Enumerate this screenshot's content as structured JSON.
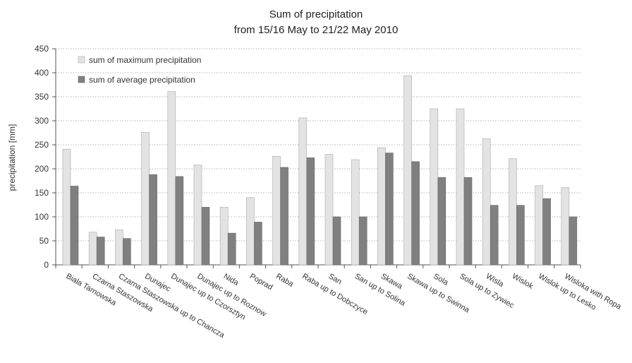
{
  "chart_data": {
    "type": "bar",
    "title": "Sum of precipitation",
    "subtitle": "from 15/16 May to 21/22 May 2010",
    "xlabel": "",
    "ylabel": "precipitation [mm]",
    "ylim": [
      0,
      450
    ],
    "yticks": [
      "0",
      "50",
      "100",
      "150",
      "200",
      "250",
      "300",
      "350",
      "400",
      "450"
    ],
    "grid": true,
    "legend_position": "top-left",
    "categories": [
      "Biala Tarnowska",
      "Czarna Staszowska",
      "Czarna Staszowska up to Chancza",
      "Dunajec",
      "Dunajec up to Czorsztyn",
      "Dunajec up to Roznow",
      "Nida",
      "Poprad",
      "Raba",
      "Raba up to Dobczyce",
      "San",
      "San up to Solina",
      "Skawa",
      "Skawa up to Swinna",
      "Sola",
      "Sola up to Zywiec",
      "Wisla",
      "Wislok",
      "Wislok up to Lesko",
      "Wisloka with Ropa"
    ],
    "series": [
      {
        "name": "sum of maximum precipitation",
        "color": "#e3e3e3",
        "values": [
          241,
          68,
          73,
          276,
          361,
          208,
          120,
          140,
          226,
          306,
          230,
          219,
          244,
          394,
          325,
          325,
          263,
          221,
          165,
          161
        ]
      },
      {
        "name": "sum of average precipitation",
        "color": "#808080",
        "values": [
          164,
          58,
          55,
          188,
          184,
          120,
          66,
          89,
          203,
          223,
          100,
          100,
          233,
          215,
          182,
          182,
          124,
          124,
          138,
          100
        ]
      }
    ]
  }
}
